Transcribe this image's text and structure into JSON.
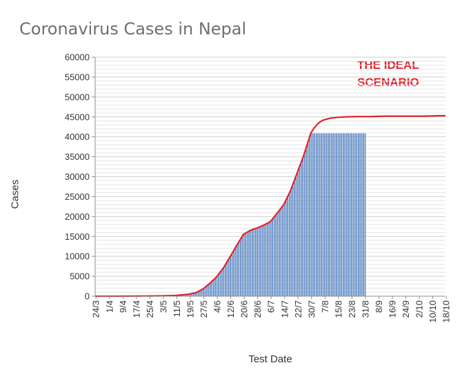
{
  "chart_data": {
    "type": "bar",
    "title": "Coronavirus Cases in Nepal",
    "xlabel": "Test Date",
    "ylabel": "Cases",
    "ylim": [
      0,
      60000
    ],
    "yticks": [
      0,
      5000,
      10000,
      15000,
      20000,
      25000,
      30000,
      35000,
      40000,
      45000,
      50000,
      55000,
      60000
    ],
    "x_tick_labels": [
      "24/3",
      "1/4",
      "9/4",
      "17/4",
      "25/4",
      "3/5",
      "11/5",
      "19/5",
      "27/5",
      "4/6",
      "12/6",
      "20/6",
      "28/6",
      "6/7",
      "14/7",
      "22/7",
      "30/7",
      "7/8",
      "15/8",
      "23/8",
      "31/8",
      "8/9",
      "16/9",
      "24/9",
      "2/10",
      "10/10",
      "18/10"
    ],
    "grid": true,
    "bar_color": "#4f7fbf",
    "line_color": "#e0202a",
    "annotation": [
      "THE IDEAL",
      "SCENARIO"
    ],
    "bar_series": {
      "name": "",
      "days": [
        0,
        8,
        16,
        24,
        32,
        40,
        48,
        56,
        60,
        64,
        68,
        72,
        76,
        80,
        84,
        88,
        92,
        96,
        100,
        104,
        106,
        108,
        112,
        116,
        120,
        124,
        128,
        132,
        136,
        140,
        144,
        148,
        152,
        156,
        160
      ],
      "values": [
        3,
        10,
        15,
        40,
        60,
        100,
        200,
        520,
        900,
        1800,
        3200,
        4800,
        7000,
        9800,
        12700,
        15500,
        16500,
        17100,
        17800,
        18700,
        20000,
        20800,
        23000,
        26500,
        31000,
        35500,
        40900,
        40900,
        40900,
        40900,
        40900,
        40900,
        40900,
        40900,
        40900
      ]
    },
    "line_series": {
      "name": "",
      "days": [
        0,
        8,
        16,
        24,
        32,
        40,
        48,
        56,
        60,
        64,
        68,
        72,
        76,
        80,
        84,
        88,
        92,
        96,
        100,
        104,
        108,
        112,
        116,
        120,
        124,
        128,
        130,
        132,
        134,
        136,
        140,
        144,
        148,
        156,
        164,
        172,
        180,
        188,
        196,
        204,
        208
      ],
      "values": [
        3,
        10,
        15,
        40,
        60,
        100,
        200,
        520,
        900,
        1800,
        3200,
        4800,
        7000,
        9800,
        12700,
        15500,
        16500,
        17100,
        17800,
        18700,
        20800,
        23000,
        26500,
        31000,
        35500,
        40900,
        42200,
        43200,
        43900,
        44300,
        44700,
        44900,
        45000,
        45100,
        45100,
        45200,
        45200,
        45200,
        45200,
        45300,
        45300
      ]
    }
  }
}
